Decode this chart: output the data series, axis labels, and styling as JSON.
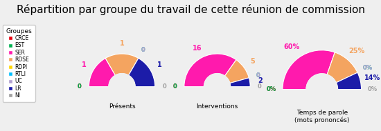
{
  "title": "Répartition par groupe du travail de cette réunion de commission",
  "groups": [
    "CRCE",
    "EST",
    "SER",
    "RDSE",
    "RDPI",
    "RTLI",
    "UC",
    "LR",
    "NI"
  ],
  "colors": [
    "#e8000d",
    "#00b050",
    "#ff1aad",
    "#f4a460",
    "#ffd700",
    "#00bfff",
    "#b0a0d0",
    "#1c1ca8",
    "#a0a0a0"
  ],
  "charts": [
    {
      "title": "Présents",
      "values": [
        0,
        0,
        1,
        1,
        0,
        0,
        0,
        1,
        0
      ],
      "labels": [
        "0",
        "0",
        "1",
        "1",
        "0",
        "0",
        "0",
        "1",
        "0"
      ]
    },
    {
      "title": "Interventions",
      "values": [
        0,
        0,
        16,
        5,
        0,
        0,
        0,
        2,
        0
      ],
      "labels": [
        "0",
        "0",
        "16",
        "5",
        "0",
        "0",
        "0",
        "2",
        "0"
      ]
    },
    {
      "title": "Temps de parole\n(mots prononcés)",
      "values": [
        0,
        0,
        60,
        25,
        0,
        0,
        0,
        14,
        0
      ],
      "labels": [
        "0%",
        "0%",
        "60%",
        "25%",
        "0%",
        "0%",
        "0%",
        "14%",
        "0%"
      ]
    }
  ],
  "background_color": "#efefef",
  "title_fontsize": 11,
  "label_fontsize": 6.5,
  "legend_groups": [
    "CRCE",
    "EST",
    "SER",
    "RDSE",
    "RDPI",
    "RTLI",
    "UC",
    "LR",
    "NI"
  ],
  "legend_colors": [
    "#e8000d",
    "#00b050",
    "#ff1aad",
    "#f4a460",
    "#ffd700",
    "#00bfff",
    "#b0a0d0",
    "#1c1ca8",
    "#a0a0a0"
  ]
}
